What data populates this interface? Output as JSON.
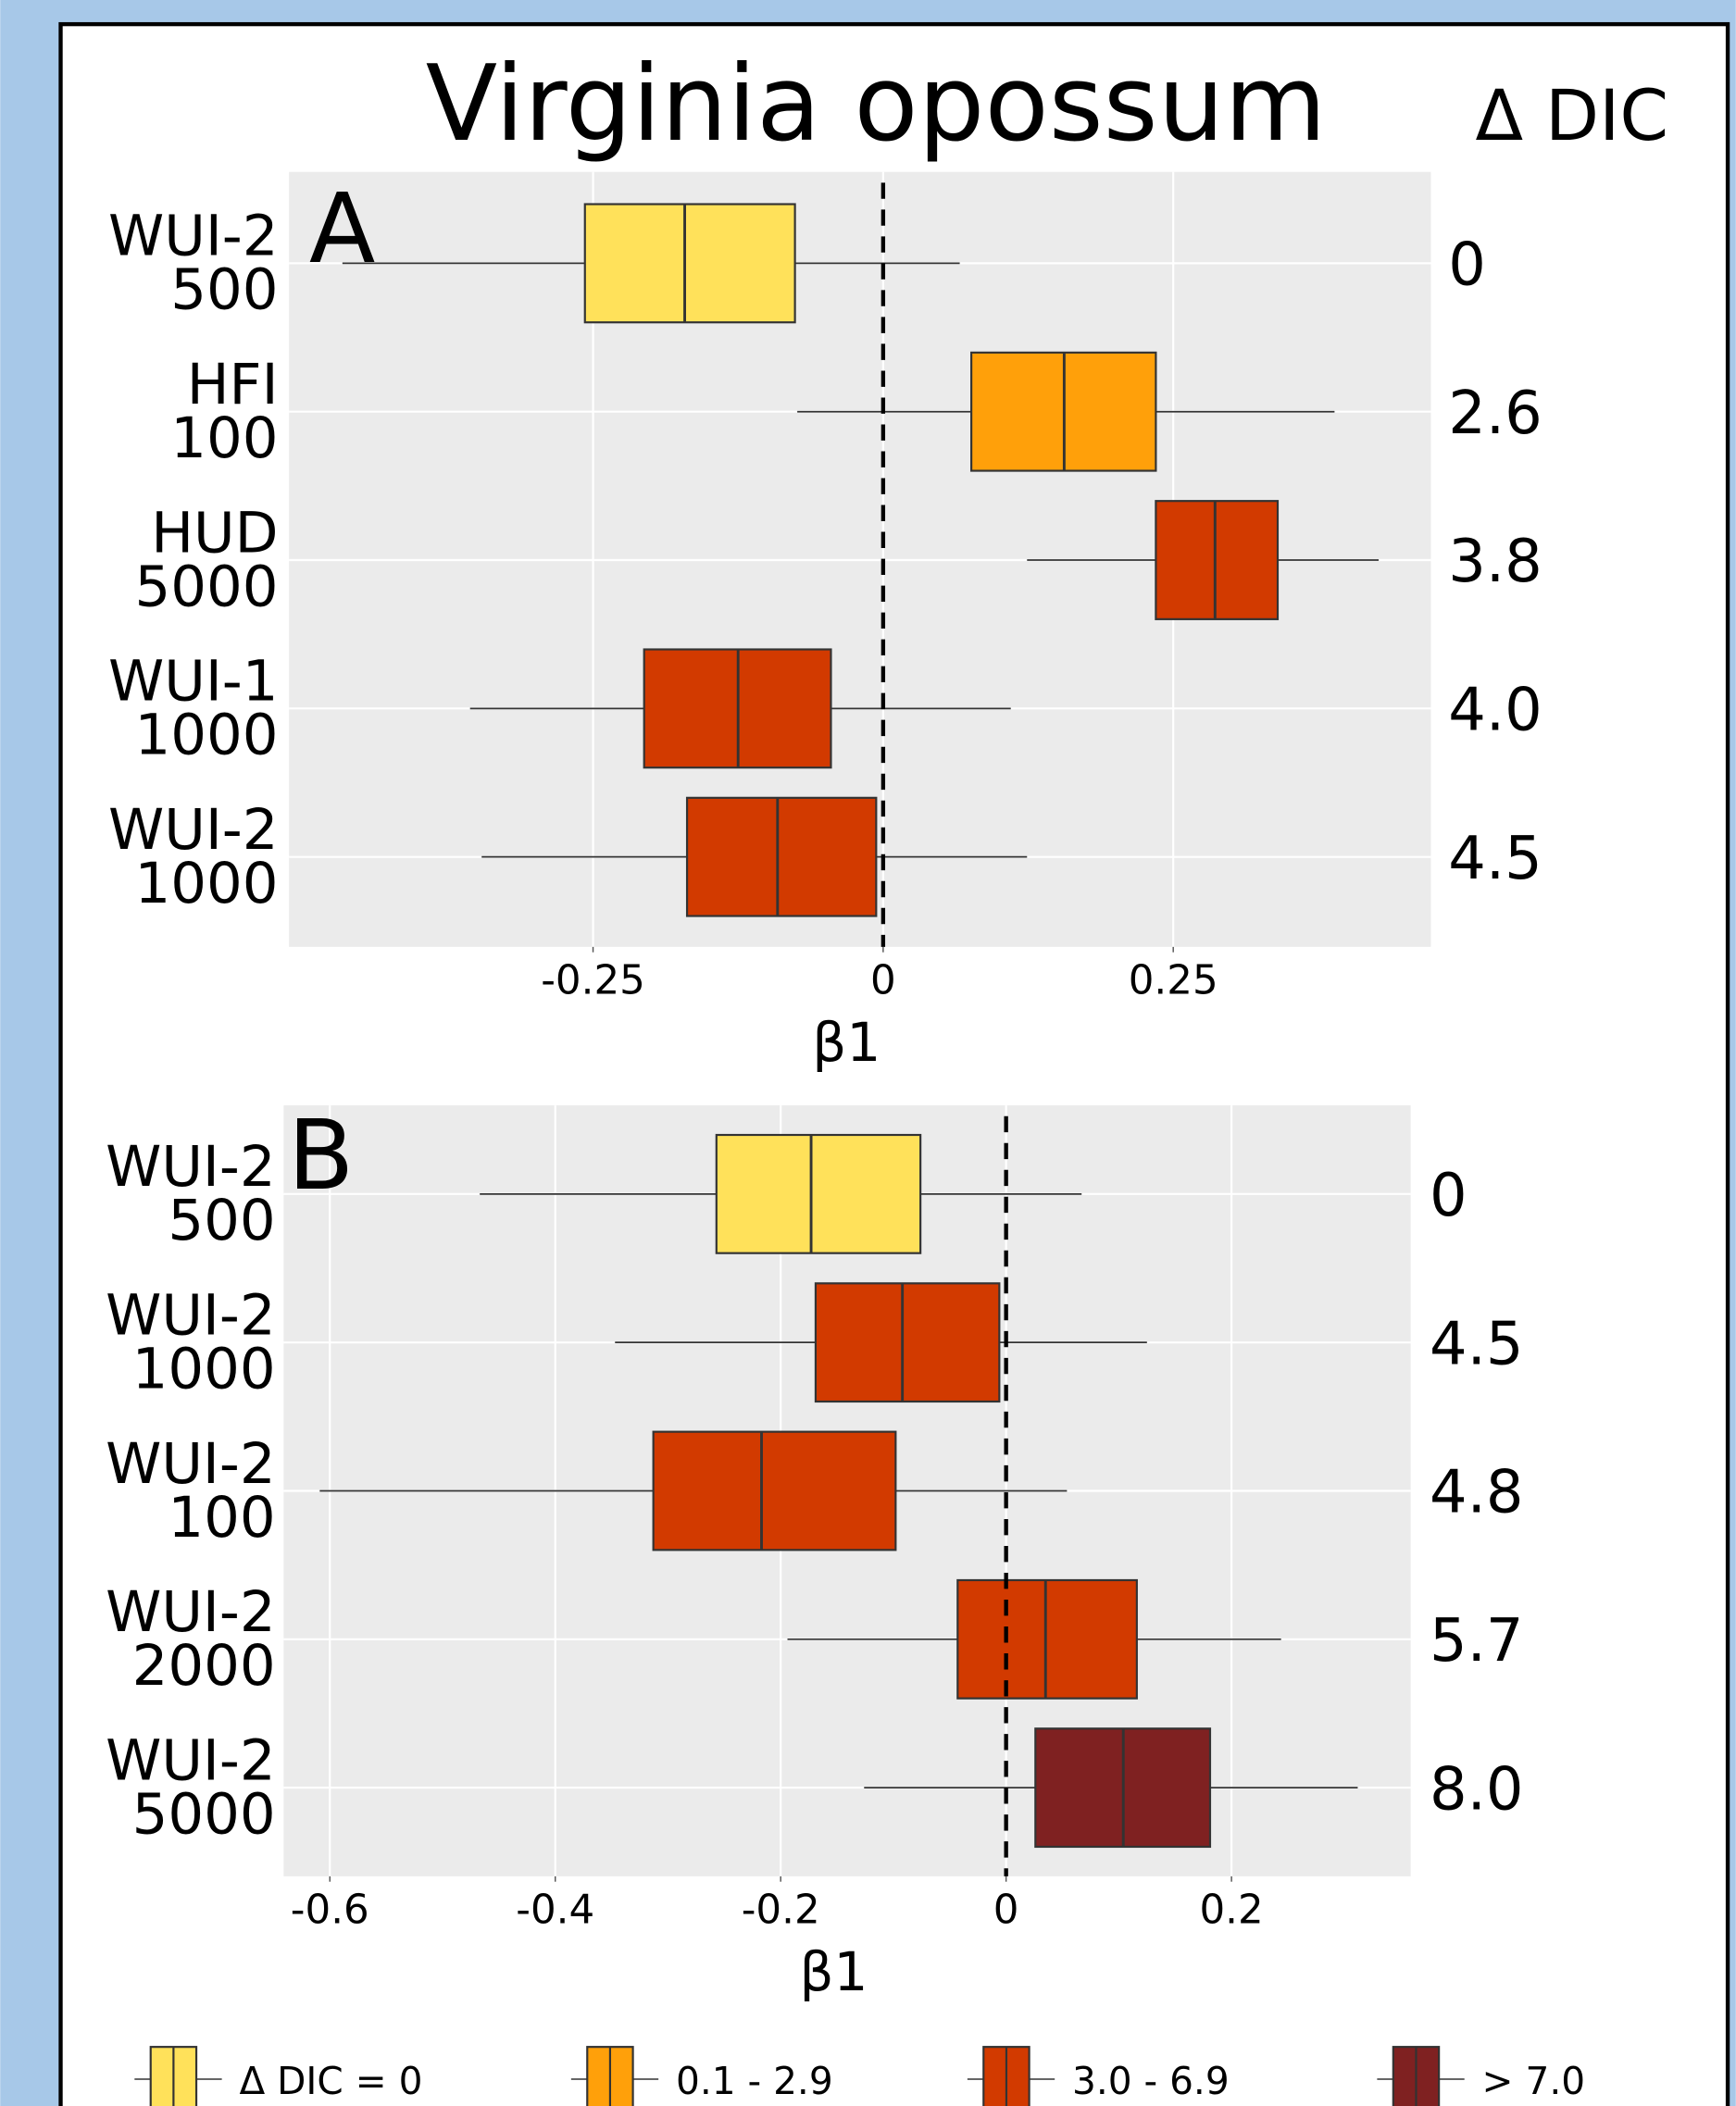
{
  "title": "Virginia opossum",
  "delta_dic_header": "Δ DIC",
  "legend": [
    {
      "label": "Δ DIC = 0",
      "color": "#FFE15A"
    },
    {
      "label": "0.1 - 2.9",
      "color": "#FFA00A"
    },
    {
      "label": "3.0 - 6.9",
      "color": "#D23A00"
    },
    {
      "label": "> 7.0",
      "color": "#7F2121"
    }
  ],
  "chart_data": [
    {
      "type": "boxplot",
      "panel": "A",
      "xlabel": "β1",
      "categories": [
        [
          "WUI-2",
          "500"
        ],
        [
          "HFI",
          "100"
        ],
        [
          "HUD",
          "5000"
        ],
        [
          "WUI-1",
          "1000"
        ],
        [
          "WUI-2",
          "1000"
        ]
      ],
      "delta_dic": [
        "0",
        "2.6",
        "3.8",
        "4.0",
        "4.5"
      ],
      "colors": [
        "#FFE15A",
        "#FFA00A",
        "#D23A00",
        "#D23A00",
        "#D23A00"
      ],
      "boxes": [
        {
          "low": -0.466,
          "q1": -0.257,
          "median": -0.171,
          "q3": -0.076,
          "high": 0.066
        },
        {
          "low": -0.074,
          "q1": 0.076,
          "median": 0.156,
          "q3": 0.235,
          "high": 0.389
        },
        {
          "low": 0.124,
          "q1": 0.235,
          "median": 0.286,
          "q3": 0.34,
          "high": 0.427
        },
        {
          "low": -0.356,
          "q1": -0.206,
          "median": -0.125,
          "q3": -0.045,
          "high": 0.11
        },
        {
          "low": -0.346,
          "q1": -0.169,
          "median": -0.091,
          "q3": -0.006,
          "high": 0.124
        }
      ],
      "xlim": [
        -0.512,
        0.472
      ],
      "xticks": [
        -0.25,
        0,
        0.25
      ],
      "reference_x": 0,
      "grid": true
    },
    {
      "type": "boxplot",
      "panel": "B",
      "xlabel": "β1",
      "categories": [
        [
          "WUI-2",
          "500"
        ],
        [
          "WUI-2",
          "1000"
        ],
        [
          "WUI-2",
          "100"
        ],
        [
          "WUI-2",
          "2000"
        ],
        [
          "WUI-2",
          "5000"
        ]
      ],
      "delta_dic": [
        "0",
        "4.5",
        "4.8",
        "5.7",
        "8.0"
      ],
      "colors": [
        "#FFE15A",
        "#D23A00",
        "#D23A00",
        "#D23A00",
        "#7F2121"
      ],
      "boxes": [
        {
          "low": -0.467,
          "q1": -0.257,
          "median": -0.173,
          "q3": -0.076,
          "high": 0.067
        },
        {
          "low": -0.347,
          "q1": -0.169,
          "median": -0.092,
          "q3": -0.006,
          "high": 0.125
        },
        {
          "low": -0.609,
          "q1": -0.313,
          "median": -0.217,
          "q3": -0.098,
          "high": 0.054
        },
        {
          "low": -0.194,
          "q1": -0.043,
          "median": 0.035,
          "q3": 0.116,
          "high": 0.244
        },
        {
          "low": -0.126,
          "q1": 0.026,
          "median": 0.104,
          "q3": 0.181,
          "high": 0.312
        }
      ],
      "xlim": [
        -0.641,
        0.359
      ],
      "xticks": [
        -0.6,
        -0.4,
        -0.2,
        0,
        0.2
      ],
      "reference_x": 0,
      "grid": true
    }
  ]
}
